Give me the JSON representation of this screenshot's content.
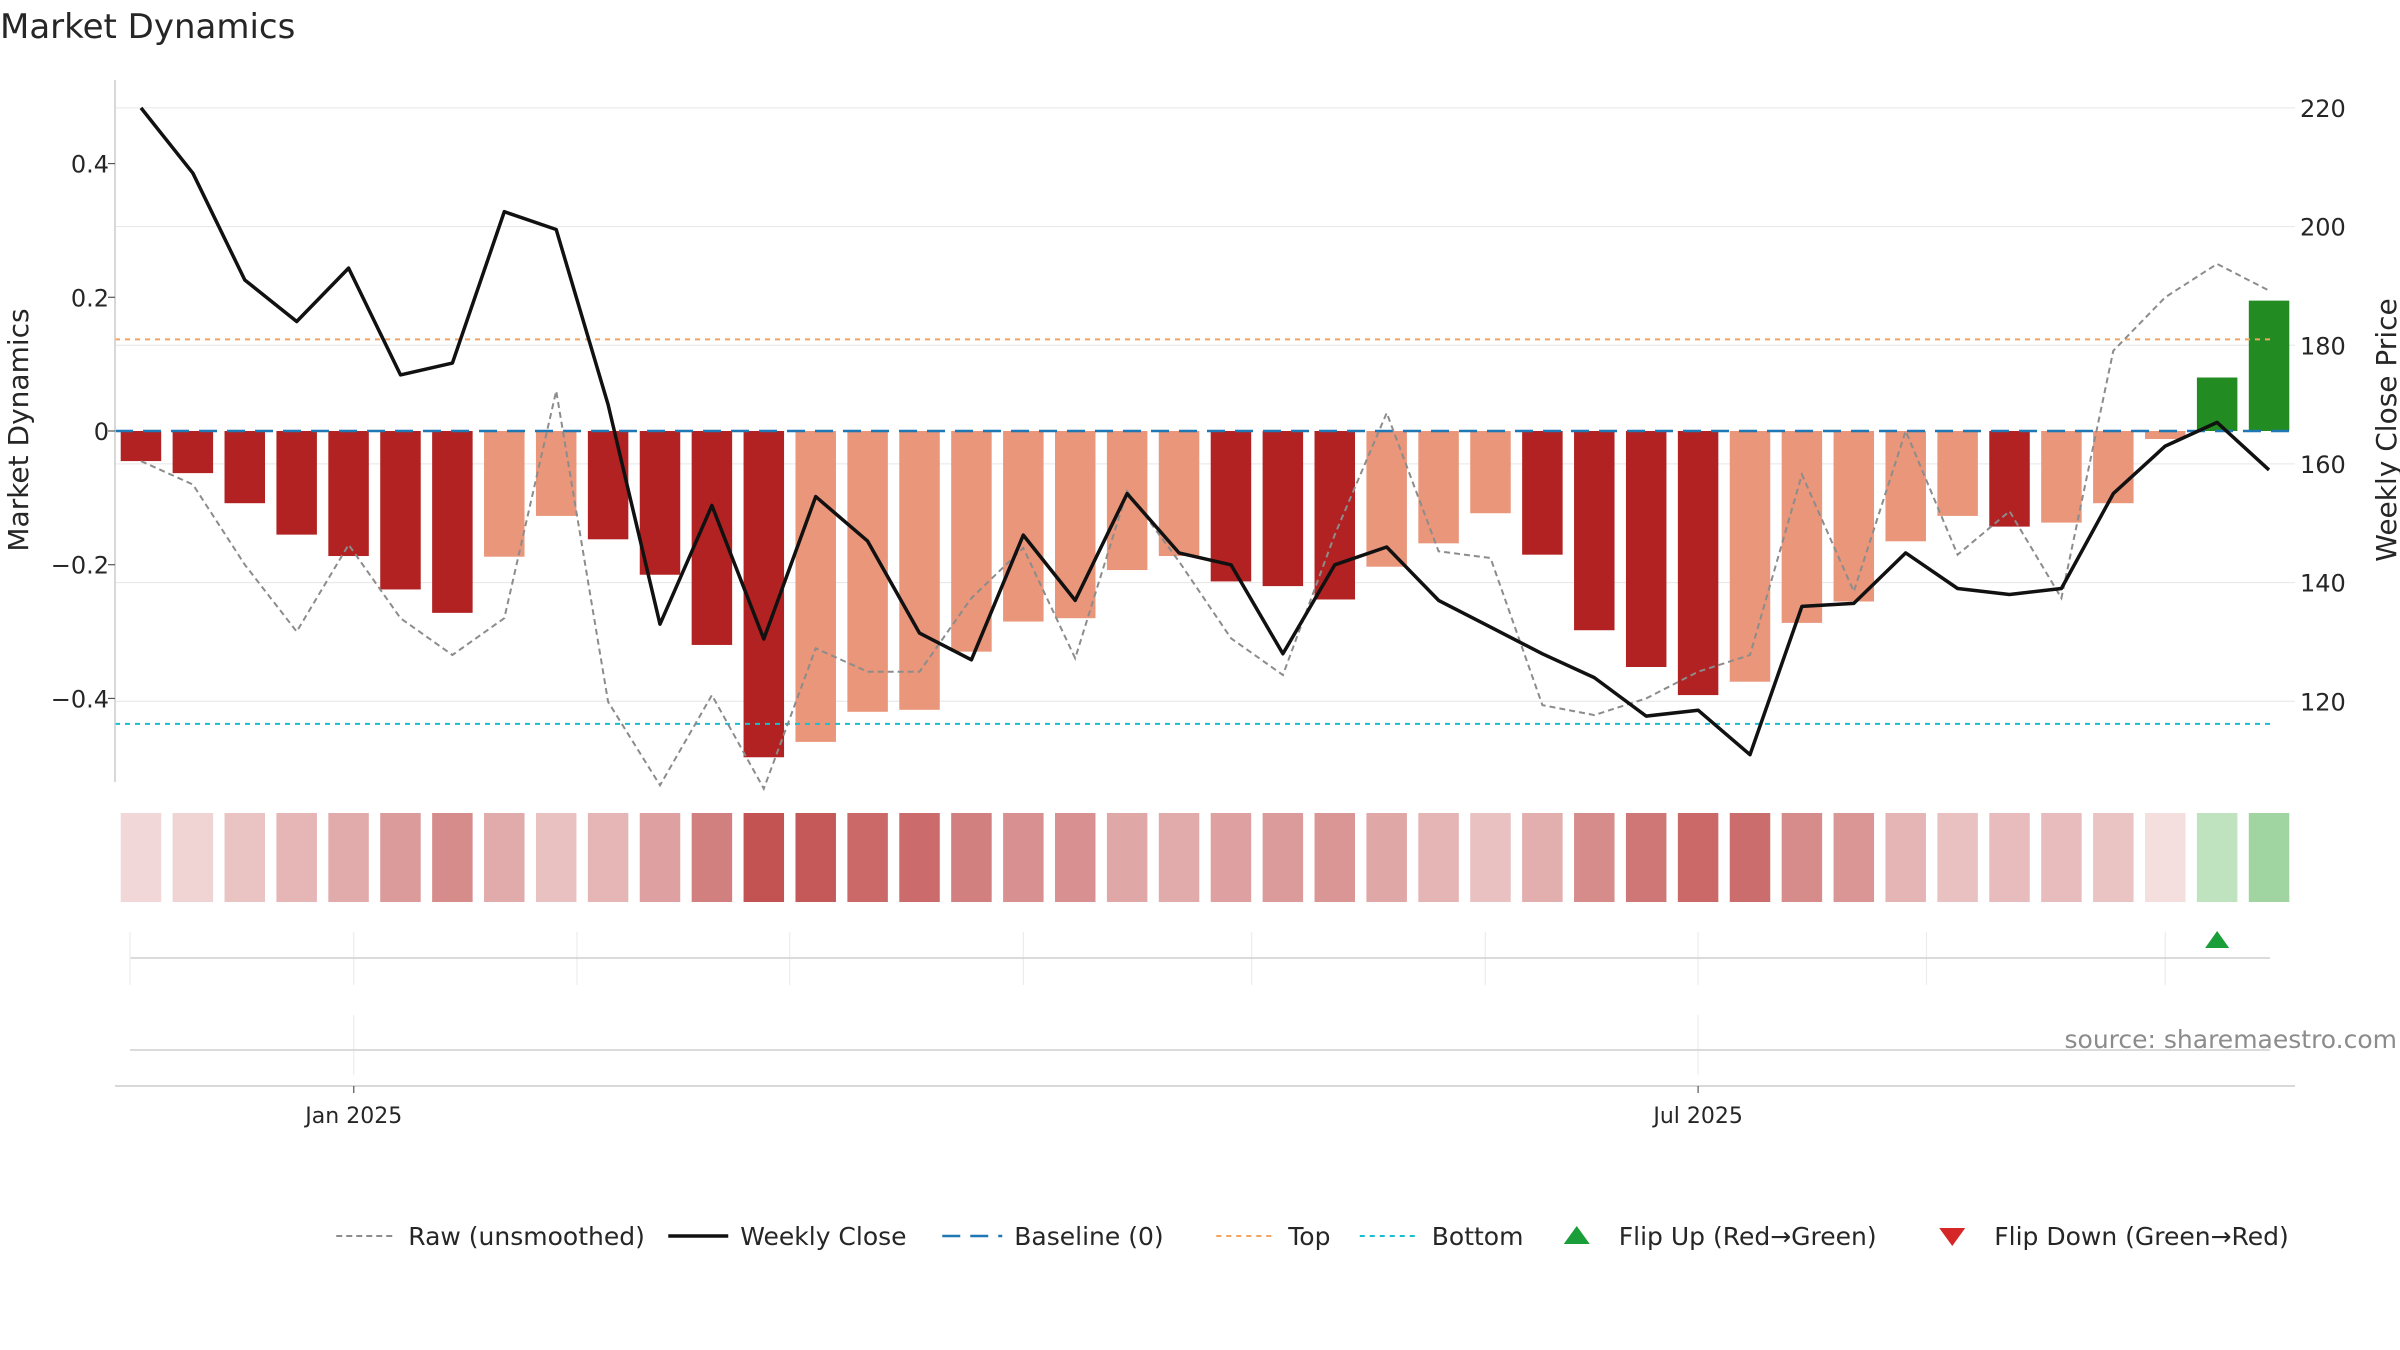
{
  "chart_data": {
    "type": "bar",
    "title": "Market Dynamics",
    "ylabel_left": "Market Dynamics",
    "ylabel_right": "Weekly Close Price",
    "source": "source: sharemaestro.com",
    "x_tick_labels": [
      "Jan 2025",
      "Jul 2025"
    ],
    "x_tick_week_index": [
      4.6,
      30.5
    ],
    "left_yticks": [
      {
        "v": 0.4,
        "label": "0.4"
      },
      {
        "v": 0.2,
        "label": "0.2"
      },
      {
        "v": 0,
        "label": "0"
      },
      {
        "v": -0.2,
        "label": "−0.2"
      },
      {
        "v": -0.4,
        "label": "−0.4"
      }
    ],
    "right_yticks": [
      {
        "v": 220,
        "label": "220"
      },
      {
        "v": 200,
        "label": "200"
      },
      {
        "v": 180,
        "label": "180"
      },
      {
        "v": 160,
        "label": "160"
      },
      {
        "v": 140,
        "label": "140"
      },
      {
        "v": 120,
        "label": "120"
      }
    ],
    "ylim_left": [
      -0.525,
      0.525
    ],
    "ylim_right": [
      106.4,
      224.7
    ],
    "baseline": 0,
    "top_threshold": 0.137,
    "bottom_threshold": -0.438,
    "bars": [
      -0.045,
      -0.063,
      -0.108,
      -0.155,
      -0.187,
      -0.237,
      -0.272,
      -0.188,
      -0.127,
      -0.162,
      -0.215,
      -0.32,
      -0.488,
      -0.465,
      -0.42,
      -0.417,
      -0.33,
      -0.285,
      -0.28,
      -0.208,
      -0.187,
      -0.225,
      -0.232,
      -0.252,
      -0.203,
      -0.168,
      -0.123,
      -0.185,
      -0.298,
      -0.353,
      -0.395,
      -0.375,
      -0.287,
      -0.255,
      -0.165,
      -0.127,
      -0.143,
      -0.137,
      -0.108,
      -0.012,
      0.08,
      0.195
    ],
    "bar_shade": [
      "dark",
      "dark",
      "dark",
      "dark",
      "dark",
      "dark",
      "dark",
      "light",
      "light",
      "dark",
      "dark",
      "dark",
      "dark",
      "light",
      "light",
      "light",
      "light",
      "light",
      "light",
      "light",
      "light",
      "dark",
      "dark",
      "dark",
      "light",
      "light",
      "light",
      "dark",
      "dark",
      "dark",
      "dark",
      "light",
      "light",
      "light",
      "light",
      "light",
      "dark",
      "light",
      "light",
      "light",
      "green",
      "green"
    ],
    "raw": [
      -0.045,
      -0.08,
      -0.2,
      -0.3,
      -0.17,
      -0.28,
      -0.335,
      -0.28,
      0.06,
      -0.405,
      -0.53,
      -0.395,
      -0.535,
      -0.325,
      -0.36,
      -0.36,
      -0.25,
      -0.175,
      -0.34,
      -0.09,
      -0.195,
      -0.31,
      -0.365,
      -0.155,
      0.027,
      -0.18,
      -0.19,
      -0.41,
      -0.425,
      -0.4,
      -0.36,
      -0.335,
      -0.065,
      -0.24,
      0.0,
      -0.185,
      -0.12,
      -0.25,
      0.12,
      0.2,
      0.25,
      0.21
    ],
    "weekly_close": [
      220.0,
      209.0,
      191.0,
      184.0,
      193.0,
      175.0,
      177.0,
      202.5,
      199.5,
      170.0,
      133.0,
      153.0,
      130.5,
      154.5,
      147.0,
      131.5,
      127.0,
      148.0,
      137.0,
      155.0,
      145.0,
      143.0,
      128.0,
      143.0,
      146.0,
      137.0,
      132.5,
      128.0,
      124.0,
      117.5,
      118.5,
      111.0,
      136.0,
      136.5,
      145.0,
      139.0,
      138.0,
      139.0,
      155.0,
      163.0,
      167.0,
      159.0
    ],
    "strip_alpha": [
      0.18,
      0.2,
      0.27,
      0.33,
      0.38,
      0.45,
      0.52,
      0.38,
      0.28,
      0.33,
      0.43,
      0.58,
      0.78,
      0.75,
      0.68,
      0.67,
      0.58,
      0.5,
      0.5,
      0.4,
      0.38,
      0.43,
      0.45,
      0.48,
      0.4,
      0.34,
      0.28,
      0.37,
      0.52,
      0.62,
      0.68,
      0.66,
      0.52,
      0.48,
      0.34,
      0.28,
      0.3,
      0.3,
      0.27,
      0.15,
      0.3,
      0.45
    ],
    "flip_up_week_index": [
      40
    ],
    "flip_down_week_index": [],
    "legend": [
      {
        "key": "raw",
        "label": "Raw (unsmoothed)"
      },
      {
        "key": "close",
        "label": "Weekly Close"
      },
      {
        "key": "baseline",
        "label": "Baseline (0)"
      },
      {
        "key": "top",
        "label": "Top"
      },
      {
        "key": "bottom",
        "label": "Bottom"
      },
      {
        "key": "flipup",
        "label": "Flip Up (Red→Green)"
      },
      {
        "key": "flipdown",
        "label": "Flip Down (Green→Red)"
      }
    ],
    "colors": {
      "bar_dark": "#b22222",
      "bar_light": "#e9967a",
      "bar_green": "#228b22",
      "strip_red": "#b22222",
      "strip_green": "#2ca02c",
      "raw_line": "#8c8c8c",
      "close_line": "#111111",
      "baseline": "#1f77b4",
      "top": "#f4a460",
      "bottom": "#17becf",
      "flip_up": "#1a9e3a",
      "flip_down": "#d62728"
    }
  }
}
